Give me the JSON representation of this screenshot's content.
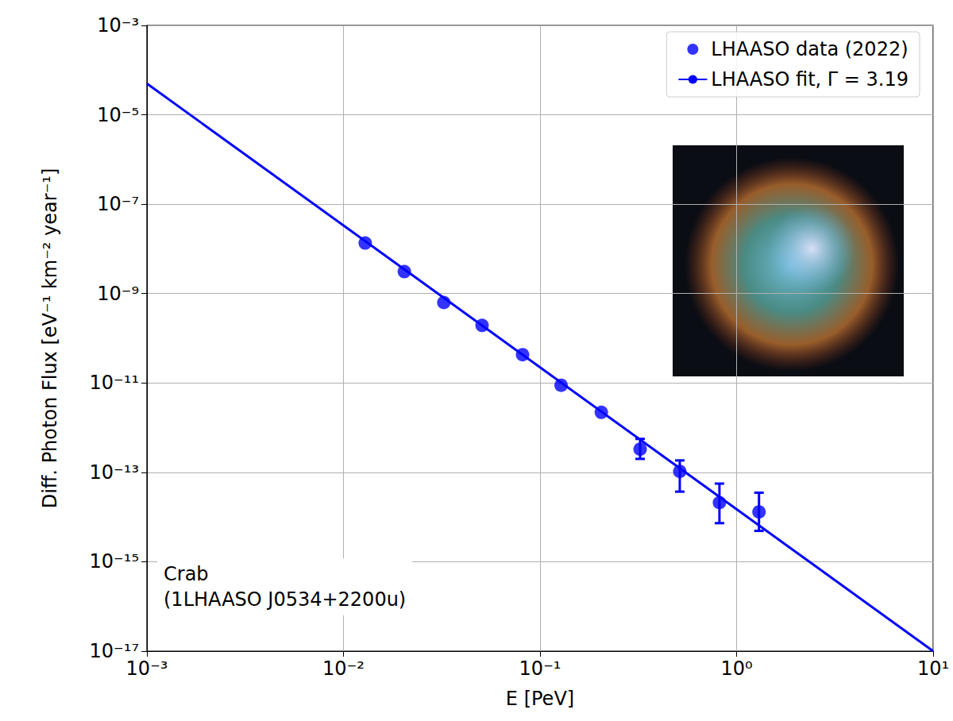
{
  "chart_data": {
    "type": "scatter",
    "x_label": "E [PeV]",
    "y_label": "Diff. Photon Flux [eV⁻¹ km⁻² year⁻¹]",
    "annotation": "Crab\n(1LHAASO J0534+2200u)",
    "log": true,
    "grid": true,
    "legend": "upper right",
    "xlim": [
      0.001,
      10
    ],
    "ylim": [
      1e-17,
      0.001
    ],
    "xticks": [
      {
        "value": 0.001,
        "label": "10⁻³"
      },
      {
        "value": 0.01,
        "label": "10⁻²"
      },
      {
        "value": 0.1,
        "label": "10⁻¹"
      },
      {
        "value": 1,
        "label": "10⁰"
      },
      {
        "value": 10,
        "label": "10¹"
      }
    ],
    "yticks": [
      {
        "value": 1e-17,
        "label": "10⁻¹⁷"
      },
      {
        "value": 1e-15,
        "label": "10⁻¹⁵"
      },
      {
        "value": 1e-13,
        "label": "10⁻¹³"
      },
      {
        "value": 1e-11,
        "label": "10⁻¹¹"
      },
      {
        "value": 1e-09,
        "label": "10⁻⁹"
      },
      {
        "value": 1e-07,
        "label": "10⁻⁷"
      },
      {
        "value": 1e-05,
        "label": "10⁻⁵"
      },
      {
        "value": 0.001,
        "label": "10⁻³"
      }
    ],
    "series": [
      {
        "name": "LHAASO data (2022)",
        "type": "scatter",
        "color": "#0000ff",
        "marker": "circle",
        "x": [
          0.0129,
          0.0204,
          0.0324,
          0.0507,
          0.0815,
          0.128,
          0.205,
          0.323,
          0.514,
          0.818,
          1.3
        ],
        "values": [
          1.35e-08,
          3.1e-09,
          6.3e-10,
          1.94e-10,
          4.3e-11,
          8.9e-12,
          2.2e-12,
          3.3e-13,
          1.05e-13,
          2.1e-14,
          1.3e-14
        ],
        "y_low": [
          null,
          null,
          null,
          null,
          null,
          null,
          null,
          2e-13,
          3.7e-14,
          7.3e-15,
          4.9e-15
        ],
        "y_high": [
          null,
          null,
          null,
          null,
          null,
          null,
          null,
          5.6e-13,
          1.85e-13,
          5.6e-14,
          3.5e-14
        ]
      },
      {
        "name": "LHAASO fit, Γ = 3.19",
        "type": "line",
        "color": "#0000ff",
        "line_style": "solid",
        "x": [
          0.001,
          10
        ],
        "values": [
          5e-05,
          1e-17
        ]
      }
    ]
  }
}
